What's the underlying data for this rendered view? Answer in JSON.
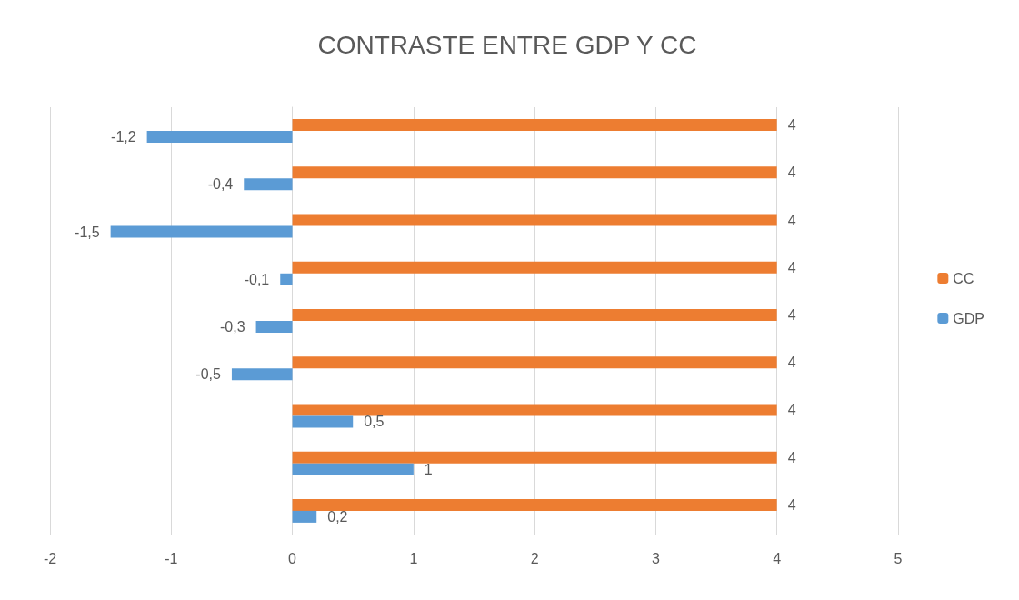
{
  "chart_data": {
    "type": "bar",
    "orientation": "horizontal",
    "title": "CONTRASTE ENTRE GDP Y CC",
    "categories": [
      null,
      null,
      null,
      null,
      null,
      null,
      null,
      null,
      null
    ],
    "series": [
      {
        "name": "CC",
        "color": "#ed7d31",
        "values": [
          4,
          4,
          4,
          4,
          4,
          4,
          4,
          4,
          4
        ],
        "value_labels": [
          "4",
          "4",
          "4",
          "4",
          "4",
          "4",
          "4",
          "4",
          "4"
        ]
      },
      {
        "name": "GDP",
        "color": "#5b9bd5",
        "values": [
          -1.2,
          -0.4,
          -1.5,
          -0.1,
          -0.3,
          -0.5,
          0.5,
          1,
          0.2
        ],
        "value_labels": [
          "-1,2",
          "-0,4",
          "-1,5",
          "-0,1",
          "-0,3",
          "-0,5",
          "0,5",
          "1",
          "0,2"
        ]
      }
    ],
    "xlim": [
      -2,
      5
    ],
    "xticks": [
      -2,
      -1,
      0,
      1,
      2,
      3,
      4,
      5
    ],
    "grid": "x",
    "legend": "right"
  }
}
